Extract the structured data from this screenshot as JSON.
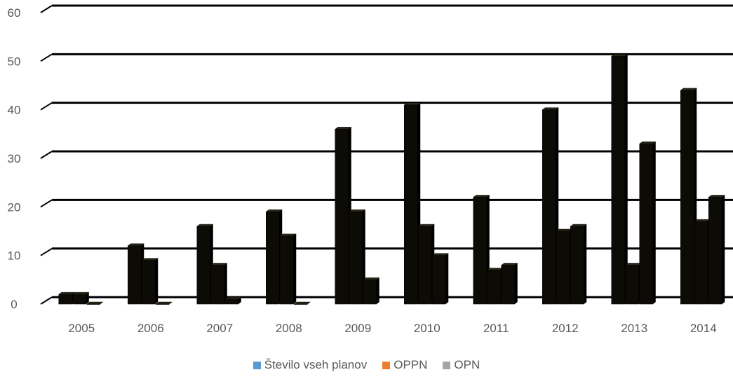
{
  "chart_data": {
    "type": "bar",
    "categories": [
      "2005",
      "2006",
      "2007",
      "2008",
      "2009",
      "2010",
      "2011",
      "2012",
      "2013",
      "2014"
    ],
    "series": [
      {
        "name": "Število vseh planov",
        "values": [
          2,
          12,
          16,
          19,
          36,
          41,
          22,
          40,
          51,
          44
        ],
        "color": "#5B9BD5"
      },
      {
        "name": "OPPN",
        "values": [
          2,
          9,
          8,
          14,
          19,
          16,
          7,
          15,
          8,
          17
        ],
        "color": "#ED7D31"
      },
      {
        "name": "OPN",
        "values": [
          0,
          0,
          1,
          0,
          5,
          10,
          8,
          16,
          33,
          22
        ],
        "color": "#A5A5A5"
      }
    ],
    "bar_fill": "#0d0b06",
    "y_ticks": [
      "0",
      "10",
      "20",
      "30",
      "40",
      "50",
      "60"
    ],
    "ylim": [
      0,
      60
    ],
    "title": "",
    "xlabel": "",
    "ylabel": "",
    "grid": true,
    "legend_position": "bottom"
  }
}
